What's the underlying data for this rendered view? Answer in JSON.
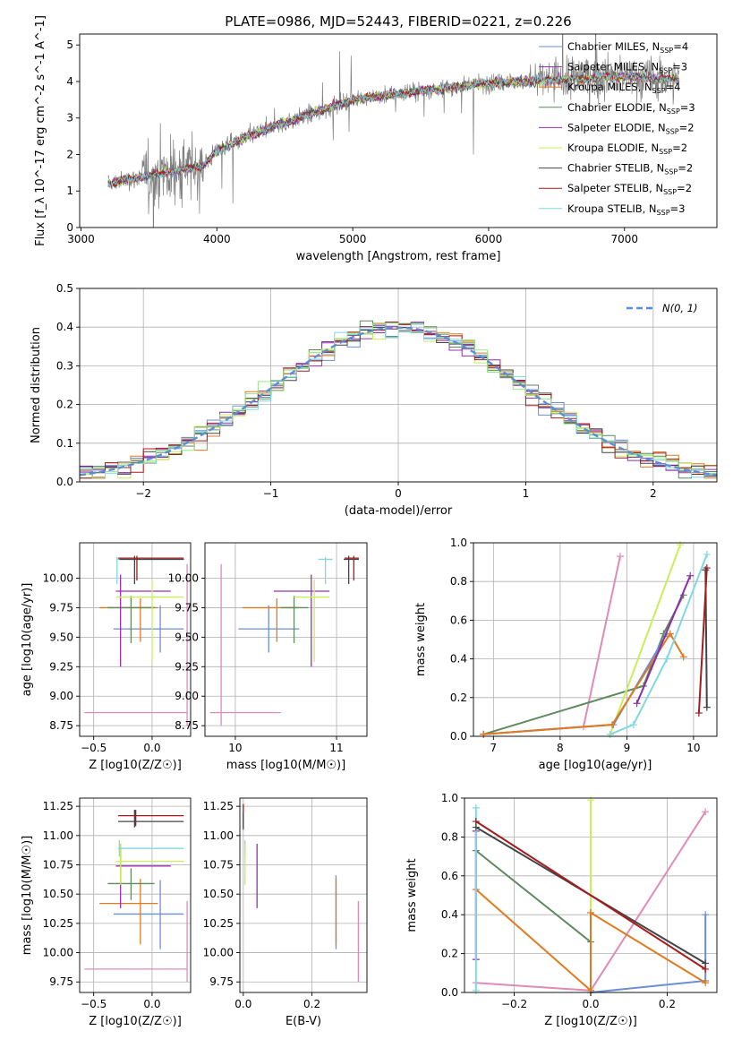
{
  "figure_title": "PLATE=0986, MJD=52443, FIBERID=0221, z=0.226",
  "colors": {
    "chabrier_miles": "#6a8fd6",
    "salpeter_miles": "#8d2ea8",
    "kroupa_miles": "#e07a1f",
    "chabrier_elodie": "#5e8a5e",
    "salpeter_elodie": "#9b31b0",
    "kroupa_elodie": "#c8ee5a",
    "chabrier_stelib": "#454545",
    "salpeter_stelib": "#a51c1c",
    "kroupa_stelib": "#7fd8e2",
    "data": "#7f7f7f",
    "pink": "#e08ab8",
    "green": "#98e488",
    "normal": "#5b8fd2"
  },
  "chart_data": [
    {
      "type": "line",
      "title": "PLATE=0986, MJD=52443, FIBERID=0221, z=0.226",
      "xlabel": "wavelength [Angstrom, rest frame]",
      "ylabel": "Flux [f_λ 10^-17 erg cm^-2 s^-1 A^-1]",
      "xlim": [
        2990,
        7680
      ],
      "ylim": [
        0,
        5.3
      ],
      "xticks": [
        "3000",
        "4000",
        "5000",
        "6000",
        "7000"
      ],
      "yticks": [
        "0",
        "1",
        "2",
        "3",
        "4",
        "5"
      ],
      "legend_position": "upper right",
      "legend": [
        {
          "base": "Chabrier MILES, N",
          "sub": "SSP",
          "tail": "=4",
          "color": "#6a8fd6"
        },
        {
          "base": "Salpeter MILES, N",
          "sub": "SSP",
          "tail": "=3",
          "color": "#8d2ea8"
        },
        {
          "base": "Kroupa MILES, N",
          "sub": "SSP",
          "tail": "=4",
          "color": "#e07a1f"
        },
        {
          "base": "Chabrier ELODIE, N",
          "sub": "SSP",
          "tail": "=3",
          "color": "#5e8a5e"
        },
        {
          "base": "Salpeter ELODIE, N",
          "sub": "SSP",
          "tail": "=2",
          "color": "#9b31b0"
        },
        {
          "base": "Kroupa ELODIE, N",
          "sub": "SSP",
          "tail": "=2",
          "color": "#c8ee5a"
        },
        {
          "base": "Chabrier STELIB, N",
          "sub": "SSP",
          "tail": "=2",
          "color": "#454545"
        },
        {
          "base": "Salpeter STELIB, N",
          "sub": "SSP",
          "tail": "=2",
          "color": "#a51c1c"
        },
        {
          "base": "Kroupa STELIB, N",
          "sub": "SSP",
          "tail": "=3",
          "color": "#7fd8e2"
        }
      ],
      "trend": {
        "x": [
          3200,
          3400,
          3700,
          3900,
          4000,
          4300,
          4600,
          5000,
          5500,
          6000,
          6500,
          7000,
          7400
        ],
        "y": [
          1.2,
          1.35,
          1.55,
          1.7,
          2.1,
          2.6,
          3.0,
          3.5,
          3.75,
          3.95,
          4.05,
          4.15,
          4.05
        ]
      },
      "data_range": [
        3200,
        7400
      ],
      "models_range": [
        3200,
        7400
      ]
    },
    {
      "type": "line",
      "xlabel": "(data-model)/error",
      "ylabel": "Normed distribution",
      "xlim": [
        -2.5,
        2.5
      ],
      "ylim": [
        0,
        0.5
      ],
      "xticks": [
        "-2",
        "-1",
        "0",
        "1",
        "2"
      ],
      "yticks": [
        "0.0",
        "0.1",
        "0.2",
        "0.3",
        "0.4",
        "0.5"
      ],
      "legend_position": "upper right",
      "legend": [
        {
          "label": "N(0, 1)",
          "color": "#5b8fd2",
          "style": "dashed"
        }
      ],
      "bin_width": 0.1,
      "histogram_colors": [
        "#6a8fd6",
        "#8d2ea8",
        "#e07a1f",
        "#5e8a5e",
        "#9b31b0",
        "#c8ee5a",
        "#454545",
        "#a51c1c",
        "#7fd8e2",
        "#98e488"
      ]
    },
    {
      "type": "scatter",
      "xlabel": "Z [log10(Z/Z☉)]",
      "ylabel": "age [log10(age/yr)]",
      "xlim": [
        -0.62,
        0.33
      ],
      "ylim": [
        8.66,
        10.3
      ],
      "xticks": [
        "-0.5",
        "0.0"
      ],
      "yticks": [
        "8.75",
        "9.00",
        "9.25",
        "9.50",
        "9.75",
        "10.00"
      ],
      "errorbars": [
        {
          "x": 0.3,
          "y": 8.86,
          "xlo": -0.58,
          "xhi": 0.3,
          "ylo": 8.75,
          "yhi": 10.12,
          "color": "#e08ab8"
        },
        {
          "x": 0.07,
          "y": 9.57,
          "xlo": -0.33,
          "xhi": 0.27,
          "ylo": 9.37,
          "yhi": 9.77,
          "color": "#6a8fd6"
        },
        {
          "x": -0.1,
          "y": 9.75,
          "xlo": -0.45,
          "xhi": 0.05,
          "ylo": 9.46,
          "yhi": 9.83,
          "color": "#e07a1f"
        },
        {
          "x": -0.18,
          "y": 9.75,
          "xlo": -0.38,
          "xhi": 0.02,
          "ylo": 9.45,
          "yhi": 9.85,
          "color": "#5e8a5e"
        },
        {
          "x": -0.27,
          "y": 9.89,
          "xlo": -0.31,
          "xhi": 0.16,
          "ylo": 9.25,
          "yhi": 10.03,
          "color": "#9b31b0"
        },
        {
          "x": 0.0,
          "y": 9.84,
          "xlo": -0.31,
          "xhi": 0.27,
          "ylo": 9.29,
          "yhi": 9.99,
          "color": "#c8ee5a"
        },
        {
          "x": -0.3,
          "y": 10.16,
          "xlo": -0.3,
          "xhi": 0.28,
          "ylo": 9.95,
          "yhi": 10.18,
          "color": "#7fd8e2"
        },
        {
          "x": -0.15,
          "y": 10.16,
          "xlo": -0.28,
          "xhi": 0.27,
          "ylo": 9.95,
          "yhi": 10.19,
          "color": "#454545"
        },
        {
          "x": -0.13,
          "y": 10.17,
          "xlo": -0.29,
          "xhi": 0.27,
          "ylo": 9.98,
          "yhi": 10.19,
          "color": "#a51c1c"
        }
      ]
    },
    {
      "type": "scatter",
      "xlabel": "mass [log10(M/M☉)]",
      "ylabel": "",
      "xlim": [
        9.7,
        11.3
      ],
      "ylim": [
        8.66,
        10.3
      ],
      "xticks": [
        "10",
        "11"
      ],
      "yticks": [
        "8.75",
        "9.00",
        "9.25",
        "9.50",
        "9.75",
        "10.00"
      ],
      "errorbars": [
        {
          "x": 9.86,
          "y": 8.86,
          "xlo": 9.75,
          "xhi": 10.45,
          "ylo": 8.75,
          "yhi": 10.12,
          "color": "#e08ab8"
        },
        {
          "x": 10.33,
          "y": 9.57,
          "xlo": 10.03,
          "xhi": 10.63,
          "ylo": 9.37,
          "yhi": 9.77,
          "color": "#6a8fd6"
        },
        {
          "x": 10.41,
          "y": 9.75,
          "xlo": 10.07,
          "xhi": 10.63,
          "ylo": 9.46,
          "yhi": 9.83,
          "color": "#e07a1f"
        },
        {
          "x": 10.58,
          "y": 9.75,
          "xlo": 10.45,
          "xhi": 10.72,
          "ylo": 9.45,
          "yhi": 9.85,
          "color": "#5e8a5e"
        },
        {
          "x": 10.75,
          "y": 9.89,
          "xlo": 10.38,
          "xhi": 10.93,
          "ylo": 9.25,
          "yhi": 10.03,
          "color": "#9b31b0"
        },
        {
          "x": 10.78,
          "y": 9.84,
          "xlo": 10.58,
          "xhi": 10.93,
          "ylo": 9.29,
          "yhi": 9.99,
          "color": "#c8ee5a"
        },
        {
          "x": 10.89,
          "y": 10.16,
          "xlo": 10.82,
          "xhi": 10.96,
          "ylo": 9.95,
          "yhi": 10.18,
          "color": "#7fd8e2"
        },
        {
          "x": 11.12,
          "y": 10.16,
          "xlo": 11.07,
          "xhi": 11.22,
          "ylo": 9.95,
          "yhi": 10.19,
          "color": "#454545"
        },
        {
          "x": 11.17,
          "y": 10.17,
          "xlo": 11.08,
          "xhi": 11.22,
          "ylo": 9.98,
          "yhi": 10.19,
          "color": "#a51c1c"
        }
      ]
    },
    {
      "type": "line",
      "xlabel": "age [log10(age/yr)]",
      "ylabel": "mass weight",
      "xlim": [
        6.7,
        10.35
      ],
      "ylim": [
        0,
        1.0
      ],
      "xticks": [
        "7",
        "8",
        "9",
        "10"
      ],
      "yticks": [
        "0.0",
        "0.2",
        "0.4",
        "0.6",
        "0.8",
        "1.0"
      ],
      "series": [
        {
          "color": "#e08ab8",
          "x": [
            6.85,
            8.35,
            8.9
          ],
          "y": [
            0.01,
            0.05,
            0.93
          ]
        },
        {
          "color": "#5e8a5e",
          "x": [
            6.85,
            9.25,
            9.55,
            9.85
          ],
          "y": [
            0.01,
            0.26,
            0.53,
            0.73
          ]
        },
        {
          "color": "#c8ee5a",
          "x": [
            8.75,
            9.8
          ],
          "y": [
            0.01,
            0.99
          ]
        },
        {
          "color": "#6a8fd6",
          "x": [
            6.85,
            8.8,
            9.6
          ],
          "y": [
            0.01,
            0.06,
            0.53
          ]
        },
        {
          "color": "#e07a1f",
          "x": [
            6.85,
            8.78,
            9.65,
            9.85
          ],
          "y": [
            0.01,
            0.06,
            0.53,
            0.41
          ]
        },
        {
          "color": "#8d2ea8",
          "x": [
            9.15,
            9.95
          ],
          "y": [
            0.17,
            0.83
          ]
        },
        {
          "color": "#7fd8e2",
          "x": [
            8.75,
            9.1,
            9.6,
            10.2
          ],
          "y": [
            0.01,
            0.06,
            0.4,
            0.94
          ]
        },
        {
          "color": "#454545",
          "x": [
            10.18,
            10.2
          ],
          "y": [
            0.86,
            0.15
          ]
        },
        {
          "color": "#a51c1c",
          "x": [
            10.08,
            10.2
          ],
          "y": [
            0.12,
            0.87
          ]
        }
      ]
    },
    {
      "type": "scatter",
      "xlabel": "Z [log10(Z/Z☉)]",
      "ylabel": "mass [log10(M/M☉)]",
      "xlim": [
        -0.62,
        0.33
      ],
      "ylim": [
        9.66,
        11.32
      ],
      "xticks": [
        "-0.5",
        "0.0"
      ],
      "yticks": [
        "9.75",
        "10.00",
        "10.25",
        "10.50",
        "10.75",
        "11.00",
        "11.25"
      ],
      "errorbars": [
        {
          "x": 0.3,
          "y": 9.86,
          "xlo": -0.58,
          "xhi": 0.3,
          "ylo": 9.75,
          "yhi": 10.44,
          "color": "#e08ab8"
        },
        {
          "x": 0.07,
          "y": 10.33,
          "xlo": -0.33,
          "xhi": 0.27,
          "ylo": 10.03,
          "yhi": 10.62,
          "color": "#6a8fd6"
        },
        {
          "x": -0.1,
          "y": 10.42,
          "xlo": -0.45,
          "xhi": 0.05,
          "ylo": 10.07,
          "yhi": 10.63,
          "color": "#e07a1f"
        },
        {
          "x": -0.18,
          "y": 10.59,
          "xlo": -0.38,
          "xhi": 0.02,
          "ylo": 10.45,
          "yhi": 10.72,
          "color": "#5e8a5e"
        },
        {
          "x": -0.27,
          "y": 10.74,
          "xlo": -0.31,
          "xhi": 0.16,
          "ylo": 10.38,
          "yhi": 10.93,
          "color": "#9b31b0"
        },
        {
          "x": -0.27,
          "y": 10.78,
          "xlo": -0.31,
          "xhi": 0.27,
          "ylo": 10.58,
          "yhi": 10.93,
          "color": "#c8ee5a"
        },
        {
          "x": -0.28,
          "y": 10.89,
          "xlo": -0.29,
          "xhi": 0.27,
          "ylo": 10.82,
          "yhi": 10.96,
          "color": "#7fd8e2"
        },
        {
          "x": -0.15,
          "y": 11.12,
          "xlo": -0.29,
          "xhi": 0.27,
          "ylo": 11.07,
          "yhi": 11.22,
          "color": "#454545"
        },
        {
          "x": -0.14,
          "y": 11.17,
          "xlo": -0.29,
          "xhi": 0.27,
          "ylo": 11.08,
          "yhi": 11.22,
          "color": "#a51c1c"
        }
      ]
    },
    {
      "type": "scatter",
      "xlabel": "E(B-V)",
      "ylabel": "",
      "xlim": [
        -0.01,
        0.36
      ],
      "ylim": [
        9.66,
        11.32
      ],
      "xticks": [
        "0.0",
        "0.2"
      ],
      "yticks": [
        "9.75",
        "10.00",
        "10.25",
        "10.50",
        "10.75",
        "11.00",
        "11.25"
      ],
      "errorbars": [
        {
          "x": 0.0,
          "y": 11.22,
          "ylo": 11.07,
          "yhi": 11.27,
          "color": "#a51c1c"
        },
        {
          "x": 0.0,
          "y": 11.12,
          "ylo": 11.05,
          "yhi": 11.2,
          "color": "#454545"
        },
        {
          "x": 0.005,
          "y": 10.89,
          "ylo": 10.82,
          "yhi": 10.96,
          "color": "#7fd8e2"
        },
        {
          "x": 0.005,
          "y": 10.75,
          "ylo": 10.58,
          "yhi": 10.93,
          "color": "#c8ee5a"
        },
        {
          "x": 0.04,
          "y": 10.65,
          "ylo": 10.38,
          "yhi": 10.93,
          "color": "#9b31b0"
        },
        {
          "x": 0.27,
          "y": 10.33,
          "ylo": 10.03,
          "yhi": 10.66,
          "color": "#6a8fd6"
        },
        {
          "x": 0.27,
          "y": 10.42,
          "ylo": 10.07,
          "yhi": 10.63,
          "color": "#e07a1f"
        },
        {
          "x": 0.335,
          "y": 10.1,
          "ylo": 9.75,
          "yhi": 10.44,
          "color": "#e08ab8"
        }
      ]
    },
    {
      "type": "line",
      "xlabel": "Z [log10(Z/Z☉)]",
      "ylabel": "mass weight",
      "xlim": [
        -0.33,
        0.33
      ],
      "ylim": [
        0,
        1.0
      ],
      "xticks": [
        "-0.2",
        "0.0",
        "0.2"
      ],
      "yticks": [
        "0.0",
        "0.2",
        "0.4",
        "0.6",
        "0.8",
        "1.0"
      ],
      "series": [
        {
          "color": "#e08ab8",
          "x": [
            -0.3,
            0.0,
            0.3
          ],
          "y": [
            0.05,
            0.01,
            0.93
          ]
        },
        {
          "color": "#5e8a5e",
          "x": [
            -0.3,
            0.0
          ],
          "y": [
            0.73,
            0.26
          ]
        },
        {
          "color": "#c8ee5a",
          "x": [
            0.0,
            0.0
          ],
          "y": [
            0.01,
            0.99
          ]
        },
        {
          "color": "#6a8fd6",
          "x": [
            0.0,
            0.3,
            0.3
          ],
          "y": [
            0.0,
            0.06,
            0.4
          ]
        },
        {
          "color": "#e07a1f",
          "x": [
            -0.3,
            0.0,
            0.0,
            0.3
          ],
          "y": [
            0.53,
            0.01,
            0.41,
            0.05
          ]
        },
        {
          "color": "#8d2ea8",
          "x": [
            -0.3,
            -0.3
          ],
          "y": [
            0.17,
            0.83
          ]
        },
        {
          "color": "#7fd8e2",
          "x": [
            -0.3,
            -0.3
          ],
          "y": [
            0.01,
            0.95
          ]
        },
        {
          "color": "#454545",
          "x": [
            -0.3,
            0.3
          ],
          "y": [
            0.85,
            0.15
          ]
        },
        {
          "color": "#a51c1c",
          "x": [
            -0.3,
            0.3
          ],
          "y": [
            0.88,
            0.12
          ]
        }
      ]
    }
  ]
}
